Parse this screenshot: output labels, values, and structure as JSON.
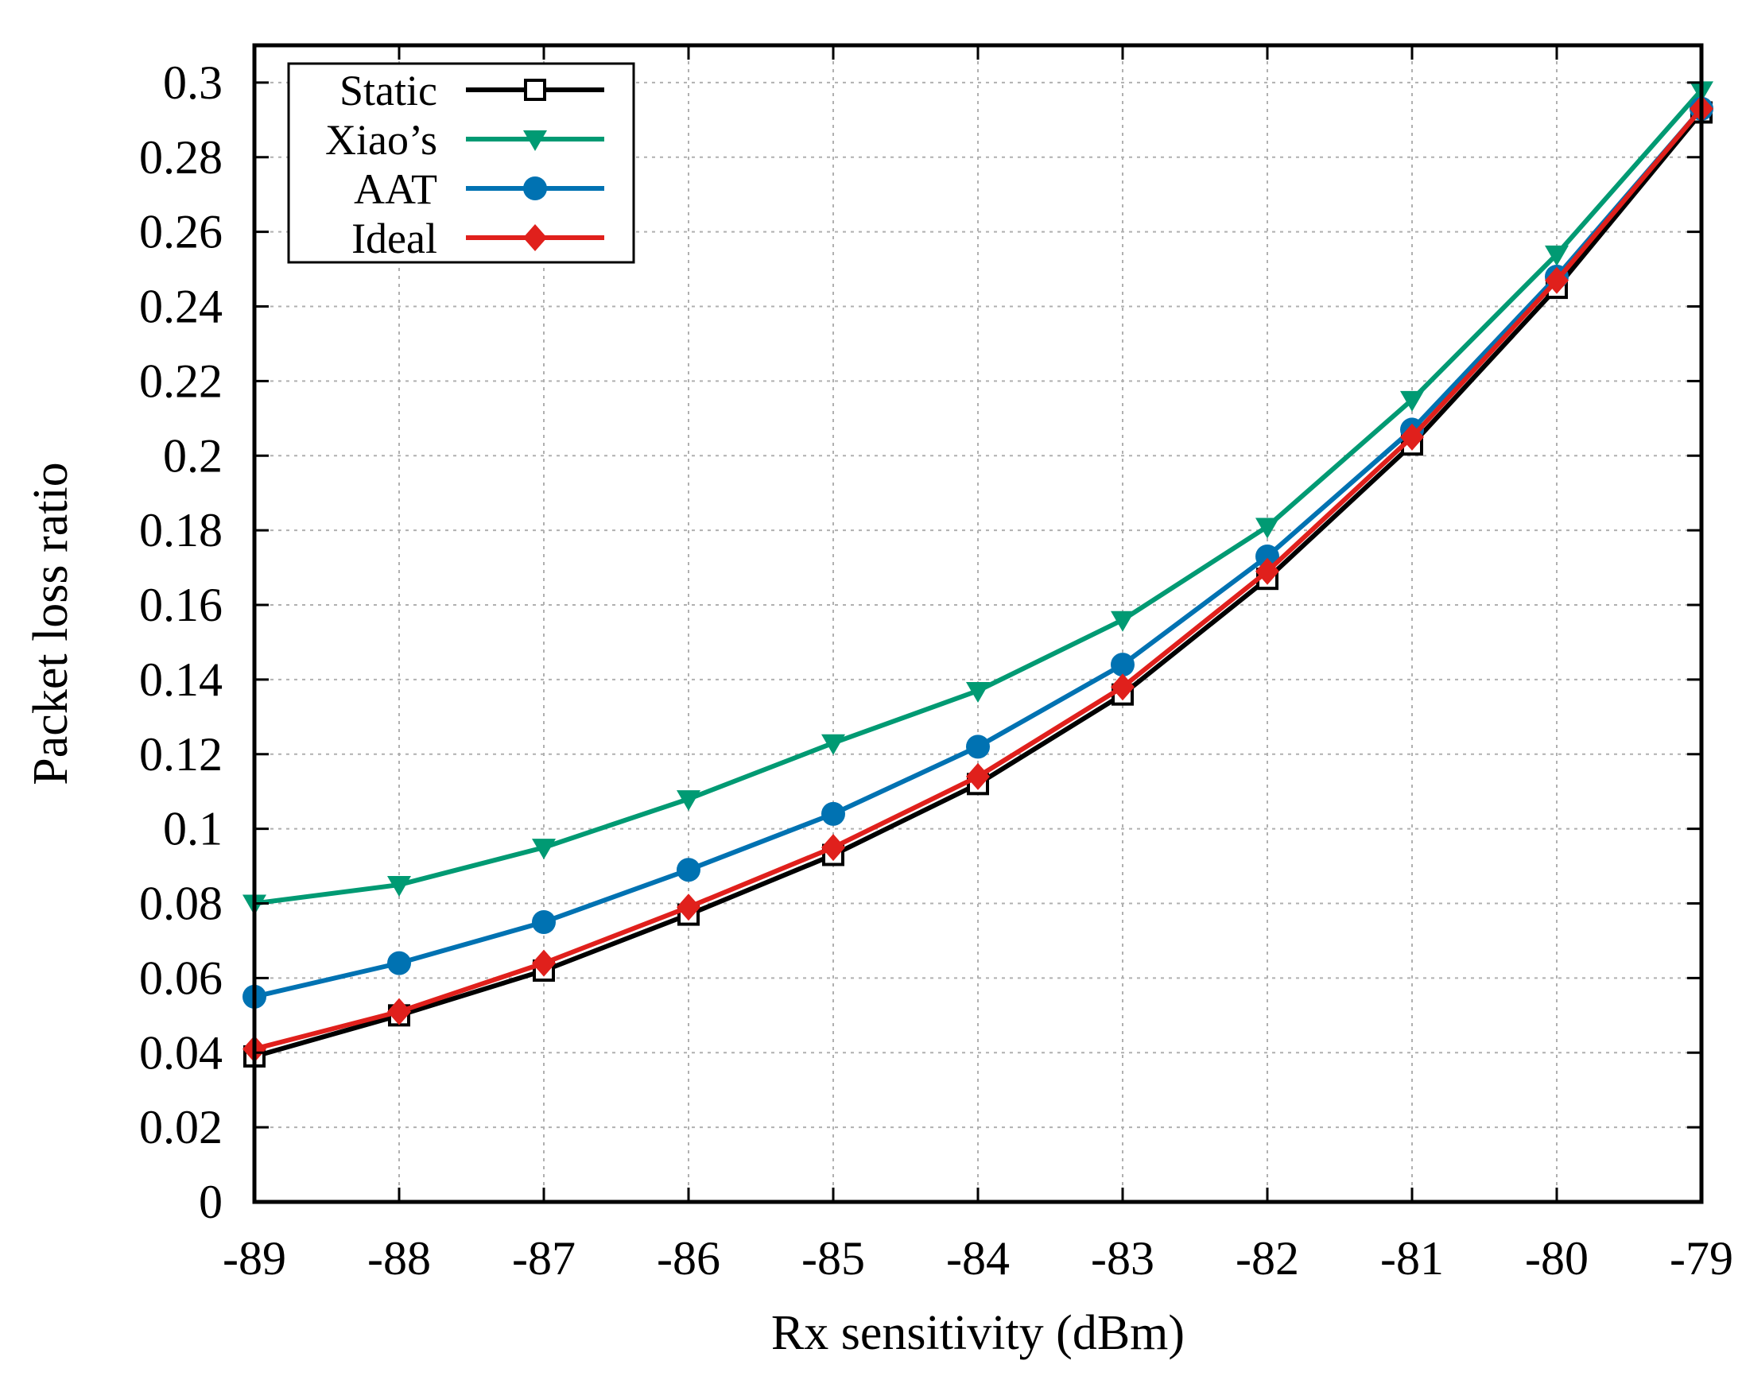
{
  "chart_data": {
    "type": "line",
    "title": "",
    "xlabel": "Rx sensitivity (dBm)",
    "ylabel": "Packet loss ratio",
    "xlim": [
      -89,
      -79
    ],
    "ylim": [
      0,
      0.31
    ],
    "grid": true,
    "legend_position": "top-left",
    "x": [
      -89,
      -88,
      -87,
      -86,
      -85,
      -84,
      -83,
      -82,
      -81,
      -80,
      -79
    ],
    "x_tick_labels": [
      "-89",
      "-88",
      "-87",
      "-86",
      "-85",
      "-84",
      "-83",
      "-82",
      "-81",
      "-80",
      "-79"
    ],
    "y_ticks": [
      0,
      0.02,
      0.04,
      0.06,
      0.08,
      0.1,
      0.12,
      0.14,
      0.16,
      0.18,
      0.2,
      0.22,
      0.24,
      0.26,
      0.28,
      0.3
    ],
    "y_tick_labels": [
      "0",
      "0.02",
      "0.04",
      "0.06",
      "0.08",
      "0.1",
      "0.12",
      "0.14",
      "0.16",
      "0.18",
      "0.2",
      "0.22",
      "0.24",
      "0.26",
      "0.28",
      "0.3"
    ],
    "series": [
      {
        "name": "Static",
        "color": "#000000",
        "marker": "open-square",
        "values": [
          0.039,
          0.05,
          0.062,
          0.077,
          0.093,
          0.112,
          0.136,
          0.167,
          0.203,
          0.245,
          0.292
        ]
      },
      {
        "name": "Xiao’s",
        "color": "#009a73",
        "marker": "down-triangle",
        "values": [
          0.08,
          0.085,
          0.095,
          0.108,
          0.123,
          0.137,
          0.156,
          0.181,
          0.215,
          0.254,
          0.298
        ]
      },
      {
        "name": "AAT",
        "color": "#0072b2",
        "marker": "circle",
        "values": [
          0.055,
          0.064,
          0.075,
          0.089,
          0.104,
          0.122,
          0.144,
          0.173,
          0.207,
          0.248,
          0.293
        ]
      },
      {
        "name": "Ideal",
        "color": "#e0201c",
        "marker": "diamond",
        "values": [
          0.041,
          0.051,
          0.064,
          0.079,
          0.095,
          0.114,
          0.138,
          0.169,
          0.205,
          0.247,
          0.293
        ]
      }
    ]
  }
}
